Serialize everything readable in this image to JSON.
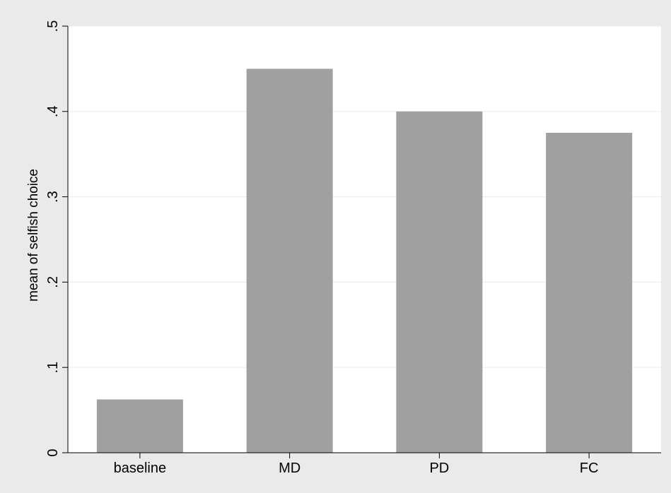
{
  "chart_data": {
    "type": "bar",
    "categories": [
      "baseline",
      "MD",
      "PD",
      "FC"
    ],
    "values": [
      0.0625,
      0.45,
      0.4,
      0.375
    ],
    "ylabel": "mean of selfish choice",
    "xlabel": "",
    "ylim": [
      0,
      0.5
    ],
    "yticks": [
      0,
      0.1,
      0.2,
      0.3,
      0.4,
      0.5
    ],
    "ytick_labels": [
      "0",
      ".1",
      ".2",
      ".3",
      ".4",
      ".5"
    ],
    "grid": true,
    "colors": {
      "background": "#eaeaea",
      "plot_area": "#ffffff",
      "bar": "#a0a0a0",
      "gridline": "#e8eff2",
      "axis": "#000000"
    }
  }
}
